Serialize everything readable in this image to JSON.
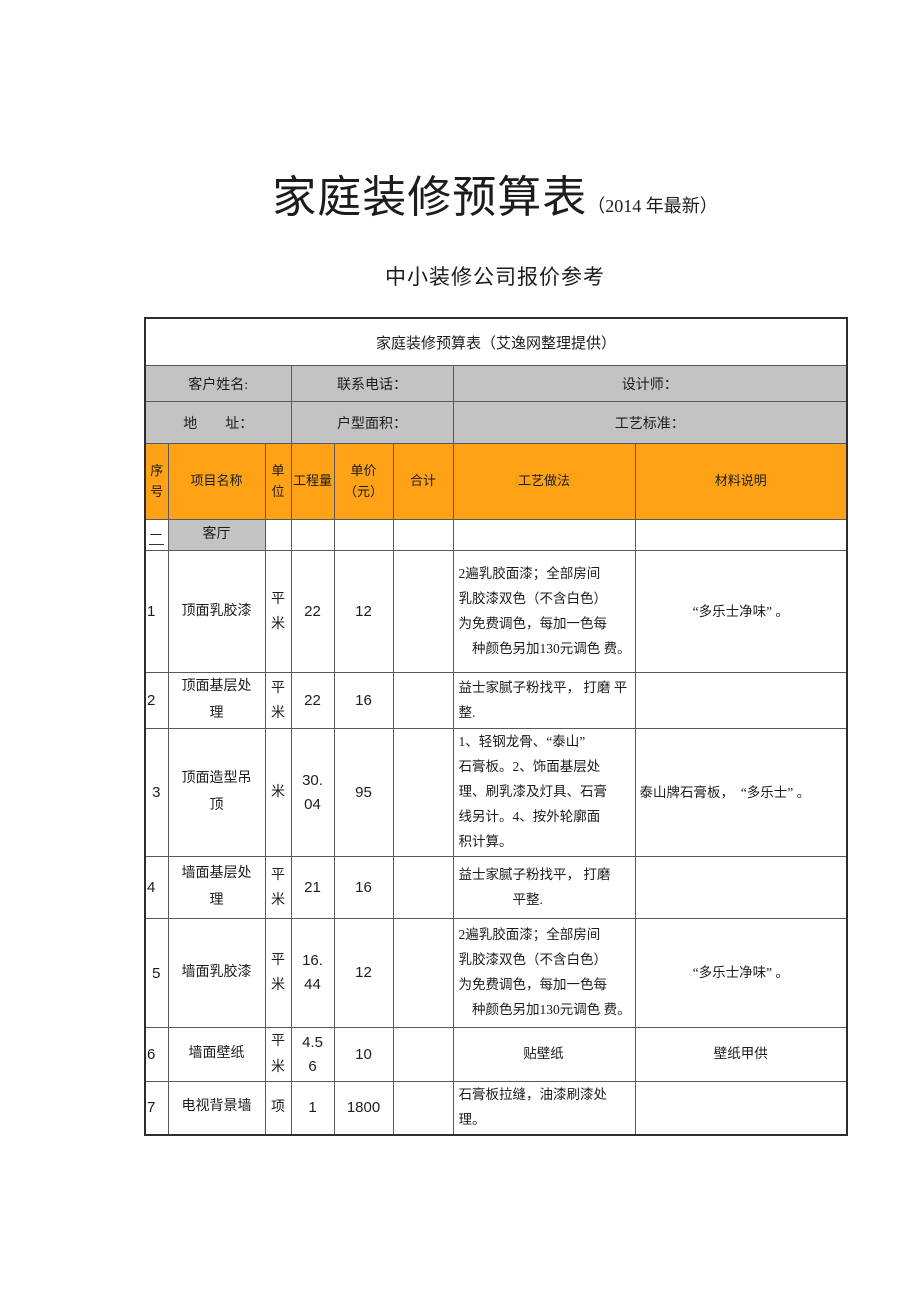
{
  "page": {
    "title": "家庭装修预算表",
    "title_suffix": "（2014 年最新）",
    "subtitle": "中小装修公司报价参考"
  },
  "colors": {
    "header_orange": "#FFA216",
    "row_gray": "#C3C3C3",
    "border_gray": "#595959"
  },
  "table": {
    "caption": "家庭装修预算表（艾逸网整理提供）",
    "info_rows": [
      {
        "cells": [
          "客户姓名:",
          "联系电话：",
          "设计师："
        ]
      },
      {
        "cells": [
          "地　　址：",
          "户型面积：",
          "工艺标准："
        ]
      }
    ],
    "columns": [
      "序号",
      "项目名称",
      "单位",
      "工程量",
      "单价\n（元）",
      "合计",
      "工艺做法",
      "材料说明"
    ],
    "section": {
      "seq": "一",
      "name": "客厅"
    },
    "rows": [
      {
        "seq": "1",
        "name": "顶面乳胶漆",
        "unit": "平米",
        "qty": "22",
        "price": "12",
        "total": "",
        "process": "2遍乳胶面漆；全部房间\n乳胶漆双色（不含白色）\n为免费调色，每加一色每\n　种颜色另加130元调色 费。",
        "material": "“多乐士净味” 。"
      },
      {
        "seq": "2",
        "name": "顶面基层处\n理",
        "unit": "平米",
        "qty": "22",
        "price": "16",
        "total": "",
        "process": "益士家腻子粉找平， 打磨 平整.",
        "material": ""
      },
      {
        "seq": "3",
        "name": "顶面造型吊\n顶",
        "unit": "米",
        "qty": "30.\n04",
        "price": "95",
        "total": "",
        "process": "1、轻钢龙骨、“泰山”\n石膏板。2、饰面基层处\n理、刷乳漆及灯具、石膏\n线另计。4、按外轮廓面\n积计算。",
        "material": "泰山牌石膏板，　“多乐士” 。"
      },
      {
        "seq": "4",
        "name": "墙面基层处\n理",
        "unit": "平米",
        "qty": "21",
        "price": "16",
        "total": "",
        "process": "益士家腻子粉找平， 打磨\n　　　　平整.",
        "material": ""
      },
      {
        "seq": "5",
        "name": "墙面乳胶漆",
        "unit": "平米",
        "qty": "16.\n44",
        "price": "12",
        "total": "",
        "process": "2遍乳胶面漆；全部房间\n乳胶漆双色（不含白色）\n为免费调色，每加一色每\n　种颜色另加130元调色 费。",
        "material": "“多乐士净味” 。"
      },
      {
        "seq": "6",
        "name": "墙面壁纸",
        "unit": "平米",
        "qty": "4.5\n6",
        "price": "10",
        "total": "",
        "process": "贴壁纸",
        "material": "壁纸甲供"
      },
      {
        "seq": "7",
        "name": "电视背景墙",
        "unit": "项",
        "qty": "1",
        "price": "1800",
        "total": "",
        "process": "石膏板拉缝，油漆刷漆处 理。",
        "material": ""
      }
    ]
  }
}
